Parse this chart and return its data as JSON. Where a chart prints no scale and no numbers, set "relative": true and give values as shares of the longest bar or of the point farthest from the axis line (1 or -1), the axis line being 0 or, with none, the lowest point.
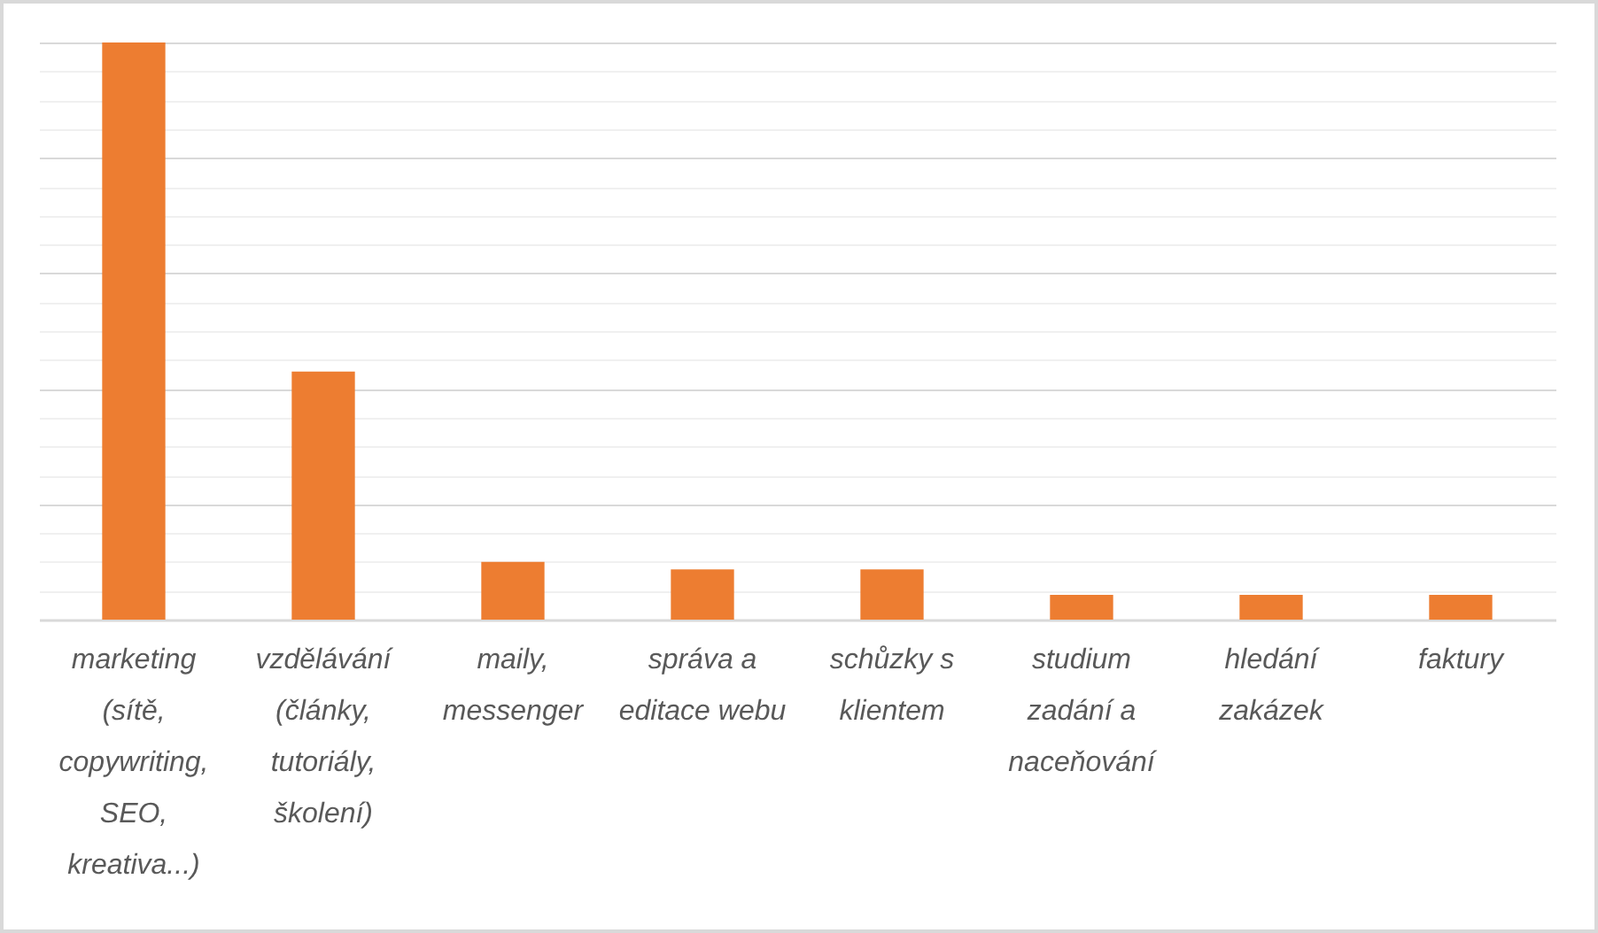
{
  "chart_data": {
    "type": "bar",
    "categories": [
      "marketing (sítě, copywriting, SEO, kreativa...)",
      "vzdělávání (články, tutoriály, školení)",
      "maily, messenger",
      "správa a editace webu",
      "schůzky s klientem",
      "studium zadání a naceňování",
      "hledání zakázek",
      "faktury"
    ],
    "values": [
      1,
      0.43,
      0.1,
      0.087,
      0.087,
      0.043,
      0.043,
      0.043
    ],
    "color": "#ed7d31",
    "relative": true,
    "grid": true
  }
}
